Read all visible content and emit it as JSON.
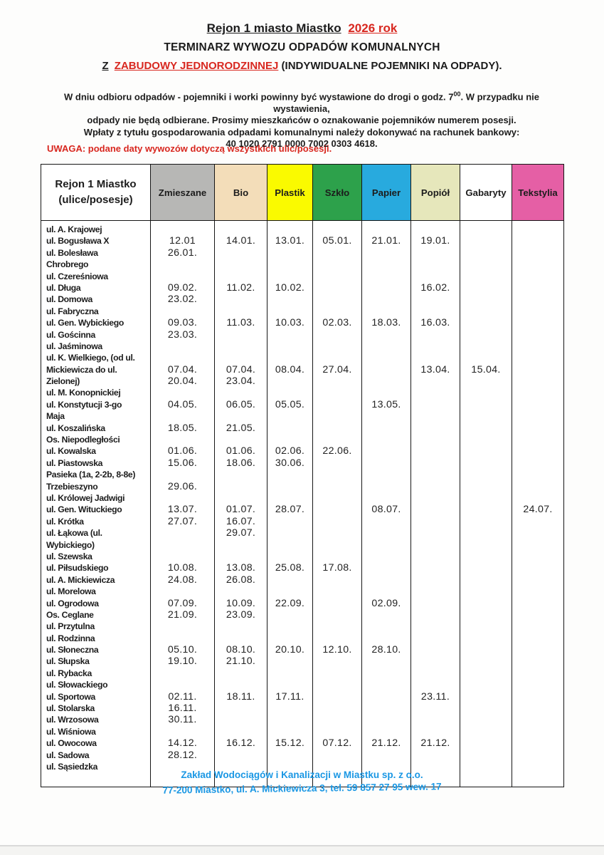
{
  "header": {
    "title_black": "Rejon 1 miasto Miastko",
    "title_red": "2026 rok",
    "subtitle": "TERMINARZ WYWOZU ODPADÓW KOMUNALNYCH",
    "type_z": "Z",
    "type_red": "ZABUDOWY JEDNORODZINNEJ",
    "type_rest": " (INDYWIDUALNE POJEMNIKI NA ODPADY).",
    "info_line1_pre": "W dniu odbioru odpadów  - pojemniki i worki powinny być wystawione do drogi o godz. 7",
    "info_sup": "00",
    "info_line1_post": ". W przypadku nie wystawienia,",
    "info_line2": "odpady nie będą odbierane. Prosimy mieszkańców o oznakowanie pojemników numerem posesji.",
    "info_line3": "Wpłaty z tytułu gospodarowania odpadami komunalnymi należy dokonywać na rachunek bankowy:",
    "bank_account": "40 1020 2791 0000 7002 0303 4618.",
    "warning": "UWAGA: podane daty wywozów dotyczą wszystkich ulic/posesji."
  },
  "table": {
    "region_line1": "Rejon 1 Miastko",
    "region_line2": "(ulice/posesje)",
    "columns": [
      {
        "key": "zmieszane",
        "label": "Zmieszane",
        "color": "#b7b7b5"
      },
      {
        "key": "bio",
        "label": "Bio",
        "color": "#f3ddb9"
      },
      {
        "key": "plastik",
        "label": "Plastik",
        "color": "#fafa00"
      },
      {
        "key": "szklo",
        "label": "Szkło",
        "color": "#2da14b"
      },
      {
        "key": "papier",
        "label": "Papier",
        "color": "#28aade"
      },
      {
        "key": "popiol",
        "label": "Popiół",
        "color": "#e6e7bb"
      },
      {
        "key": "gabaryty",
        "label": "Gabaryty",
        "color": "#ffffff"
      },
      {
        "key": "tekstylia",
        "label": "Tekstylia",
        "color": "#e55fa5"
      }
    ],
    "rows": [
      {
        "street": "ul. A. Krajowej",
        "dates": [
          "",
          "",
          "",
          "",
          "",
          "",
          "",
          ""
        ]
      },
      {
        "street": "ul. Bogusława X",
        "dates": [
          "12.01",
          "14.01.",
          "13.01.",
          "05.01.",
          "21.01.",
          "19.01.",
          "",
          ""
        ]
      },
      {
        "street": "ul. Bolesława",
        "dates": [
          "26.01.",
          "",
          "",
          "",
          "",
          "",
          "",
          ""
        ]
      },
      {
        "street": "Chrobrego",
        "dates": [
          "",
          "",
          "",
          "",
          "",
          "",
          "",
          ""
        ]
      },
      {
        "street": "ul. Czereśniowa",
        "dates": [
          "",
          "",
          "",
          "",
          "",
          "",
          "",
          ""
        ]
      },
      {
        "street": "ul. Długa",
        "dates": [
          "09.02.",
          "11.02.",
          "10.02.",
          "",
          "",
          "16.02.",
          "",
          ""
        ]
      },
      {
        "street": "ul. Domowa",
        "dates": [
          "23.02.",
          "",
          "",
          "",
          "",
          "",
          "",
          ""
        ]
      },
      {
        "street": "ul. Fabryczna",
        "dates": [
          "",
          "",
          "",
          "",
          "",
          "",
          "",
          ""
        ]
      },
      {
        "street": "ul. Gen. Wybickiego",
        "dates": [
          "09.03.",
          "11.03.",
          "10.03.",
          "02.03.",
          "18.03.",
          "16.03.",
          "",
          ""
        ]
      },
      {
        "street": "ul. Gościnna",
        "dates": [
          "23.03.",
          "",
          "",
          "",
          "",
          "",
          "",
          ""
        ]
      },
      {
        "street": "ul. Jaśminowa",
        "dates": [
          "",
          "",
          "",
          "",
          "",
          "",
          "",
          ""
        ]
      },
      {
        "street": "ul. K. Wielkiego, (od ul.",
        "dates": [
          "",
          "",
          "",
          "",
          "",
          "",
          "",
          ""
        ]
      },
      {
        "street": "Mickiewicza do ul.",
        "dates": [
          "07.04.",
          "07.04.",
          "08.04.",
          "27.04.",
          "",
          "13.04.",
          "15.04.",
          ""
        ]
      },
      {
        "street": "Zielonej)",
        "dates": [
          "20.04.",
          "23.04.",
          "",
          "",
          "",
          "",
          "",
          ""
        ]
      },
      {
        "street": "ul. M. Konopnickiej",
        "dates": [
          "",
          "",
          "",
          "",
          "",
          "",
          "",
          ""
        ]
      },
      {
        "street": "ul. Konstytucji 3-go",
        "dates": [
          "04.05.",
          "06.05.",
          "05.05.",
          "",
          "13.05.",
          "",
          "",
          ""
        ]
      },
      {
        "street": "Maja",
        "dates": [
          "",
          "",
          "",
          "",
          "",
          "",
          "",
          ""
        ]
      },
      {
        "street": "ul. Koszalińska",
        "dates": [
          "18.05.",
          "21.05.",
          "",
          "",
          "",
          "",
          "",
          ""
        ]
      },
      {
        "street": "Os. Niepodległości",
        "dates": [
          "",
          "",
          "",
          "",
          "",
          "",
          "",
          ""
        ]
      },
      {
        "street": "ul. Kowalska",
        "dates": [
          "01.06.",
          "01.06.",
          "02.06.",
          "22.06.",
          "",
          "",
          "",
          ""
        ]
      },
      {
        "street": "ul. Piastowska",
        "dates": [
          "15.06.",
          "18.06.",
          "30.06.",
          "",
          "",
          "",
          "",
          ""
        ]
      },
      {
        "street": "Pasieka (1a, 2-2b, 8-8e)",
        "dates": [
          "",
          "",
          "",
          "",
          "",
          "",
          "",
          ""
        ]
      },
      {
        "street": "Trzebieszyno",
        "dates": [
          "29.06.",
          "",
          "",
          "",
          "",
          "",
          "",
          ""
        ]
      },
      {
        "street": "ul. Królowej Jadwigi",
        "dates": [
          "",
          "",
          "",
          "",
          "",
          "",
          "",
          ""
        ]
      },
      {
        "street": "ul. Gen. Wituckiego",
        "dates": [
          "13.07.",
          "01.07.",
          "28.07.",
          "",
          "08.07.",
          "",
          "",
          "24.07."
        ]
      },
      {
        "street": "ul. Krótka",
        "dates": [
          "27.07.",
          "16.07.",
          "",
          "",
          "",
          "",
          "",
          ""
        ]
      },
      {
        "street": "ul. Łąkowa (ul.",
        "dates": [
          "",
          "29.07.",
          "",
          "",
          "",
          "",
          "",
          ""
        ]
      },
      {
        "street": "Wybickiego)",
        "dates": [
          "",
          "",
          "",
          "",
          "",
          "",
          "",
          ""
        ]
      },
      {
        "street": "ul. Szewska",
        "dates": [
          "",
          "",
          "",
          "",
          "",
          "",
          "",
          ""
        ]
      },
      {
        "street": "ul. Piłsudskiego",
        "dates": [
          "10.08.",
          "13.08.",
          "25.08.",
          "17.08.",
          "",
          "",
          "",
          ""
        ]
      },
      {
        "street": "ul. A. Mickiewicza",
        "dates": [
          "24.08.",
          "26.08.",
          "",
          "",
          "",
          "",
          "",
          ""
        ]
      },
      {
        "street": "ul. Morelowa",
        "dates": [
          "",
          "",
          "",
          "",
          "",
          "",
          "",
          ""
        ]
      },
      {
        "street": "ul. Ogrodowa",
        "dates": [
          "07.09.",
          "10.09.",
          "22.09.",
          "",
          "02.09.",
          "",
          "",
          ""
        ]
      },
      {
        "street": "Os. Ceglane",
        "dates": [
          "21.09.",
          "23.09.",
          "",
          "",
          "",
          "",
          "",
          ""
        ]
      },
      {
        "street": "ul. Przytulna",
        "dates": [
          "",
          "",
          "",
          "",
          "",
          "",
          "",
          ""
        ]
      },
      {
        "street": "ul. Rodzinna",
        "dates": [
          "",
          "",
          "",
          "",
          "",
          "",
          "",
          ""
        ]
      },
      {
        "street": "ul. Słoneczna",
        "dates": [
          "05.10.",
          "08.10.",
          "20.10.",
          "12.10.",
          "28.10.",
          "",
          "",
          ""
        ]
      },
      {
        "street": "ul. Słupska",
        "dates": [
          "19.10.",
          "21.10.",
          "",
          "",
          "",
          "",
          "",
          ""
        ]
      },
      {
        "street": "ul. Rybacka",
        "dates": [
          "",
          "",
          "",
          "",
          "",
          "",
          "",
          ""
        ]
      },
      {
        "street": "ul. Słowackiego",
        "dates": [
          "",
          "",
          "",
          "",
          "",
          "",
          "",
          ""
        ]
      },
      {
        "street": "ul. Sportowa",
        "dates": [
          "02.11.",
          "18.11.",
          "17.11.",
          "",
          "",
          "23.11.",
          "",
          ""
        ]
      },
      {
        "street": "ul. Stolarska",
        "dates": [
          "16.11.",
          "",
          "",
          "",
          "",
          "",
          "",
          ""
        ]
      },
      {
        "street": "ul. Wrzosowa",
        "dates": [
          "30.11.",
          "",
          "",
          "",
          "",
          "",
          "",
          ""
        ]
      },
      {
        "street": "ul. Wiśniowa",
        "dates": [
          "",
          "",
          "",
          "",
          "",
          "",
          "",
          ""
        ]
      },
      {
        "street": "ul. Owocowa",
        "dates": [
          "14.12.",
          "16.12.",
          "15.12.",
          "07.12.",
          "21.12.",
          "21.12.",
          "",
          ""
        ]
      },
      {
        "street": "ul. Sadowa",
        "dates": [
          "28.12.",
          "",
          "",
          "",
          "",
          "",
          "",
          ""
        ]
      },
      {
        "street": "ul. Sąsiedzka",
        "dates": [
          "",
          "",
          "",
          "",
          "",
          "",
          "",
          ""
        ]
      }
    ]
  },
  "footer": {
    "company": "Zakład Wodociągów i Kanalizacji w Miastku sp. z o.o.",
    "address": "77-200 Miastko, ul. A. Mickiewicza 3, tel. 59 857 27 95 wew. 17"
  }
}
